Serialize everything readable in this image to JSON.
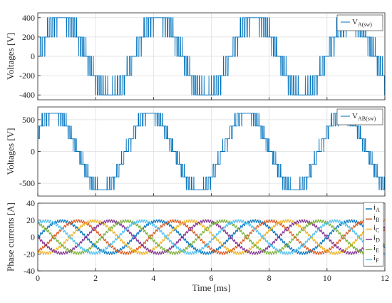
{
  "chart_data": [
    {
      "type": "line",
      "ylabel": "Voltages [V]",
      "xlim": [
        0,
        12
      ],
      "ylim": [
        -450,
        450
      ],
      "yticks": [
        -400,
        -200,
        0,
        200,
        400
      ],
      "xticks": [
        0,
        2,
        4,
        6,
        8,
        10,
        12
      ],
      "grid": true,
      "legend_position": "top-right",
      "frequency_hz": 300,
      "waveform": "phase-voltage staircase with PWM switching",
      "levels": [
        -400,
        -200,
        0,
        200,
        400
      ],
      "series": [
        {
          "name": "V",
          "name_sub": "A(sw)",
          "color": "#0072BD",
          "amplitude_v": 400
        }
      ]
    },
    {
      "type": "line",
      "ylabel": "Voltages [V]",
      "xlim": [
        0,
        12
      ],
      "ylim": [
        -700,
        700
      ],
      "yticks": [
        -500,
        0,
        500
      ],
      "xticks": [
        0,
        2,
        4,
        6,
        8,
        10,
        12
      ],
      "grid": true,
      "legend_position": "top-right",
      "frequency_hz": 300,
      "waveform": "line-to-line voltage staircase with PWM switching",
      "levels": [
        -600,
        -400,
        -200,
        0,
        200,
        400,
        600
      ],
      "series": [
        {
          "name": "V",
          "name_sub": "AB(sw)",
          "color": "#0072BD",
          "amplitude_v": 600
        }
      ]
    },
    {
      "type": "line",
      "xlabel": "Time [ms]",
      "ylabel": "Phase currents [A]",
      "xlim": [
        0,
        12
      ],
      "ylim": [
        -40,
        40
      ],
      "yticks": [
        -40,
        -20,
        0,
        20,
        40
      ],
      "xticks": [
        0,
        2,
        4,
        6,
        8,
        10,
        12
      ],
      "grid": true,
      "legend_position": "right",
      "frequency_hz": 300,
      "amplitude_a": 19,
      "series": [
        {
          "name": "i",
          "name_sub": "A",
          "color": "#0072BD",
          "phase_deg": 0
        },
        {
          "name": "i",
          "name_sub": "B",
          "color": "#D95319",
          "phase_deg": 60
        },
        {
          "name": "i",
          "name_sub": "C",
          "color": "#EDB120",
          "phase_deg": 120
        },
        {
          "name": "i",
          "name_sub": "D",
          "color": "#7E2F8E",
          "phase_deg": 180
        },
        {
          "name": "i",
          "name_sub": "E",
          "color": "#77AC30",
          "phase_deg": 240
        },
        {
          "name": "i",
          "name_sub": "F",
          "color": "#4DBEEE",
          "phase_deg": 300
        }
      ]
    }
  ]
}
